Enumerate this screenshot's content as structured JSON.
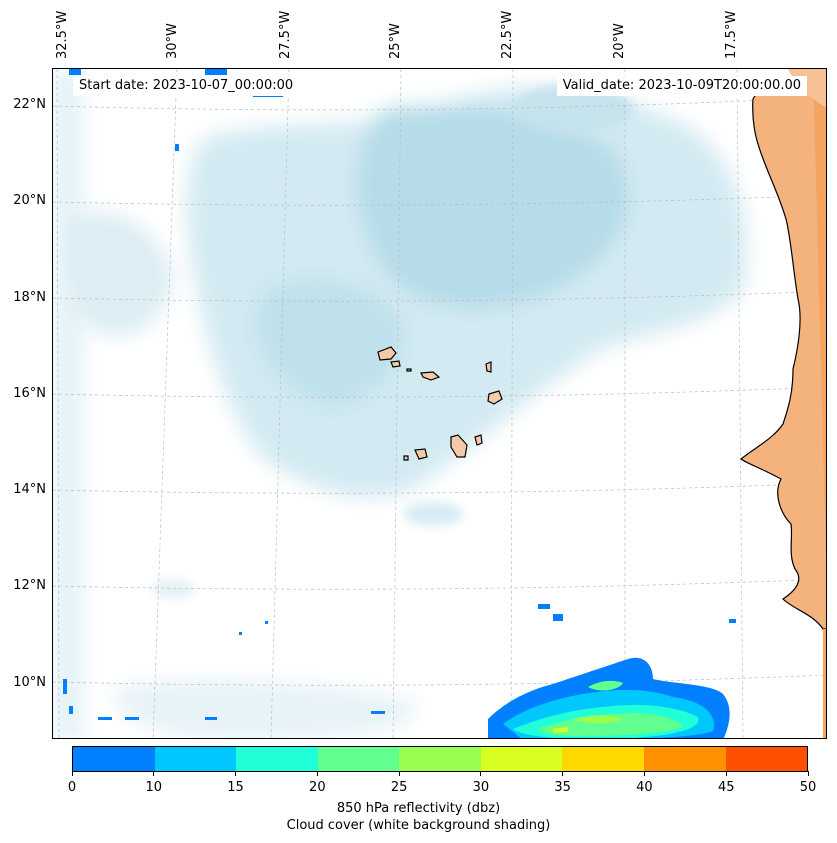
{
  "map": {
    "start_date": "Start date: 2023-10-07_00:00:00",
    "valid_date": "Valid_date: 2023-10-09T20:00:00.00",
    "longitude_labels": [
      "32.5°W",
      "30°W",
      "27.5°W",
      "25°W",
      "22.5°W",
      "20°W",
      "17.5°W"
    ],
    "latitude_labels": [
      "22°N",
      "20°N",
      "18°N",
      "16°N",
      "14°N",
      "12°N",
      "10°N"
    ],
    "colors": {
      "cloud": "#b5dce8",
      "land": "#f4a460",
      "island": "#f5cba7"
    }
  },
  "colorbar": {
    "ticks": [
      "0",
      "10",
      "15",
      "20",
      "25",
      "30",
      "35",
      "40",
      "45",
      "50"
    ],
    "colors": [
      "#0080ff",
      "#00c8ff",
      "#20ffd8",
      "#60ff90",
      "#98ff50",
      "#d8ff20",
      "#ffd800",
      "#ff9000",
      "#ff5000"
    ],
    "label_line1": "850 hPa reflectivity (dbz)",
    "label_line2": "Cloud cover (white background shading)"
  }
}
